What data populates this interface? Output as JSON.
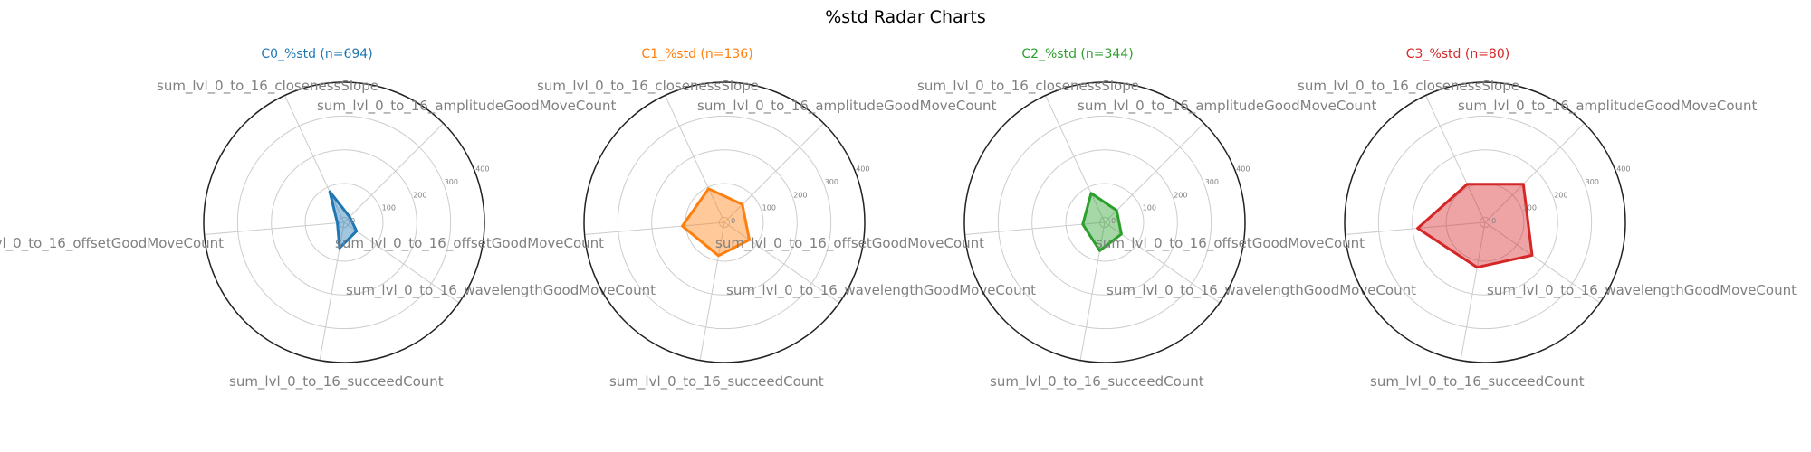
{
  "title": "%std Radar Charts",
  "chart_data": {
    "type": "radar",
    "title": "%std Radar Charts",
    "axes": [
      "sum_lvl_0_to_16_amplitudeGoodMoveCount",
      "sum_lvl_0_to_16_closenessSlope",
      "sum_lvl_0_to_16_offsetGoodMoveCount",
      "sum_lvl_0_to_16_succeedCount",
      "sum_lvl_0_to_16_wavelengthGoodMoveCount"
    ],
    "r_ticks": [
      "0",
      "100",
      "200",
      "300",
      "400"
    ],
    "r_tick_values": [
      0,
      100,
      200,
      300,
      400
    ],
    "rlim": [
      -15,
      400
    ],
    "grid": true,
    "series": [
      {
        "name": "C0_%std (n=694)",
        "color": "#1f77b4",
        "values": [
          8,
          85,
          5,
          62,
          30
        ]
      },
      {
        "name": "C1_%std (n=136)",
        "color": "#ff7f0e",
        "values": [
          60,
          95,
          110,
          85,
          75
        ]
      },
      {
        "name": "C2_%std (n=344)",
        "color": "#2ca02c",
        "values": [
          35,
          80,
          50,
          70,
          45
        ]
      },
      {
        "name": "C3_%std (n=80)",
        "color": "#d62728",
        "values": [
          145,
          110,
          185,
          120,
          155
        ]
      }
    ]
  }
}
